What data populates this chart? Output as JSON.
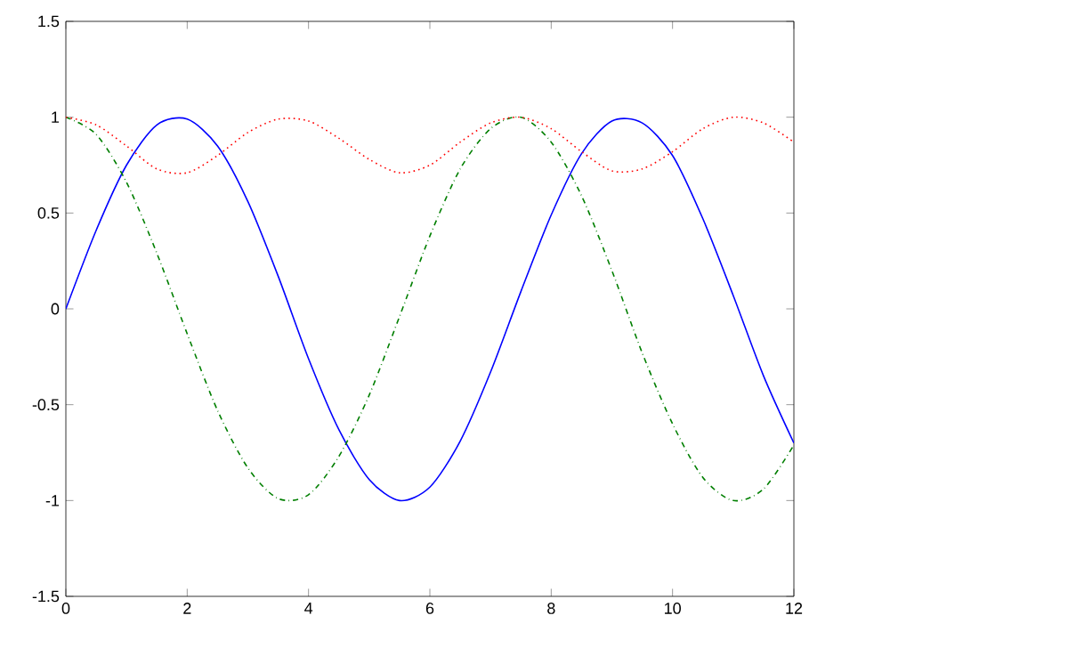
{
  "chart_data": {
    "type": "line",
    "x": [
      0,
      0.5,
      1,
      1.5,
      2,
      2.5,
      3,
      3.5,
      4,
      4.5,
      5,
      5.5,
      6,
      6.5,
      7,
      7.5,
      8,
      8.5,
      9,
      9.5,
      10,
      10.5,
      11,
      11.5,
      12
    ],
    "series": [
      {
        "color": "#0000ff",
        "line_style": "solid",
        "values": [
          0,
          0.41,
          0.75,
          0.96,
          0.99,
          0.85,
          0.56,
          0.17,
          -0.26,
          -0.63,
          -0.89,
          -1.0,
          -0.93,
          -0.69,
          -0.33,
          0.09,
          0.49,
          0.81,
          0.98,
          0.97,
          0.8,
          0.47,
          0.07,
          -0.35,
          -0.7
        ]
      },
      {
        "color": "#007f00",
        "line_style": "dashdot",
        "values": [
          1,
          0.91,
          0.66,
          0.29,
          -0.13,
          -0.53,
          -0.83,
          -0.99,
          -0.97,
          -0.77,
          -0.45,
          -0.04,
          0.38,
          0.73,
          0.94,
          1.0,
          0.87,
          0.59,
          0.2,
          -0.23,
          -0.6,
          -0.88,
          -1.0,
          -0.94,
          -0.71
        ]
      },
      {
        "color": "#ff0000",
        "line_style": "dotted",
        "values": [
          1,
          0.96,
          0.85,
          0.73,
          0.71,
          0.8,
          0.92,
          0.99,
          0.98,
          0.89,
          0.78,
          0.71,
          0.75,
          0.87,
          0.97,
          1.0,
          0.94,
          0.82,
          0.72,
          0.73,
          0.82,
          0.94,
          1.0,
          0.97,
          0.87
        ]
      }
    ],
    "xlim": [
      0,
      12
    ],
    "ylim": [
      -1.5,
      1.5
    ],
    "xticks": [
      0,
      2,
      4,
      6,
      8,
      10,
      12
    ],
    "yticks": [
      -1.5,
      -1,
      -0.5,
      0,
      0.5,
      1,
      1.5
    ]
  }
}
